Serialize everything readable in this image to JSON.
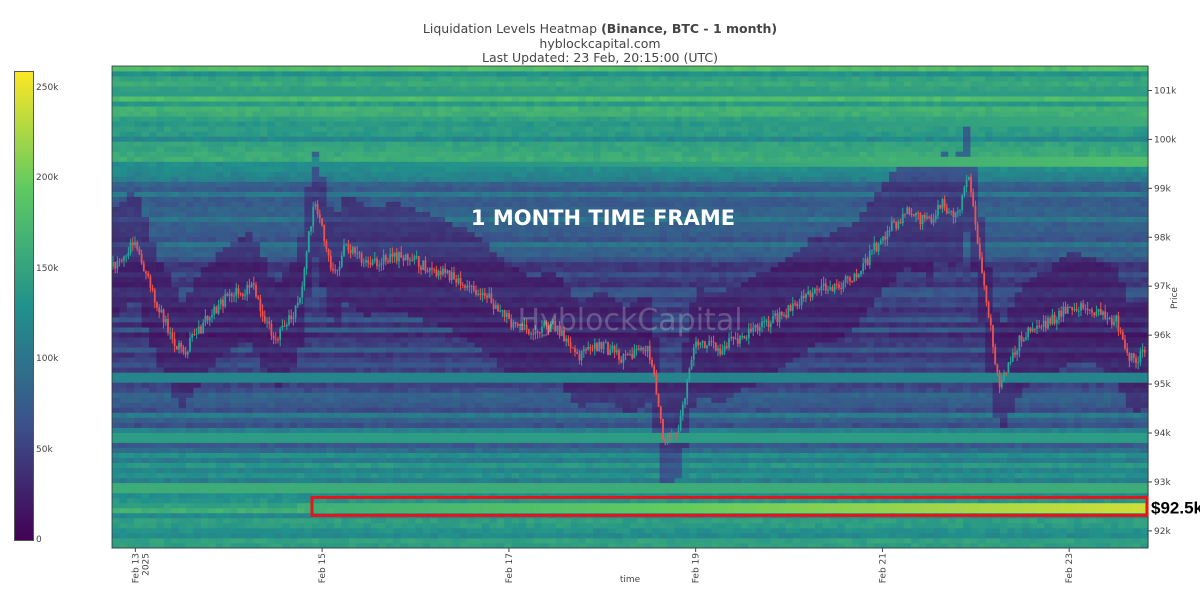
{
  "title": {
    "prefix": "Liquidation Levels Heatmap",
    "bold": "(Binance, BTC - 1 month)",
    "source": "hyblockcapital.com",
    "updated": "Last Updated: 23 Feb, 20:15:00 (UTC)"
  },
  "watermark": "HyblockCapital",
  "annotation": "1 MONTH TIME FRAME",
  "highlight_label": "$92.5k",
  "colors": {
    "colorscale": [
      "#440154",
      "#3b528b",
      "#21918c",
      "#5ec962",
      "#fde725"
    ],
    "candle_up": "#26a69a",
    "candle_down": "#ef5350",
    "highlight_box": "#e8141b"
  },
  "chart_data": {
    "type": "heatmap",
    "xlabel": "time",
    "ylabel": "Price",
    "x_ticks": [
      "Feb 13\n2025",
      "Feb 15",
      "Feb 17",
      "Feb 19",
      "Feb 21",
      "Feb 23"
    ],
    "y_ticks": [
      "92k",
      "93k",
      "94k",
      "95k",
      "96k",
      "97k",
      "98k",
      "99k",
      "100k",
      "101k"
    ],
    "ylim": [
      91650,
      101500
    ],
    "xlim": [
      "2025-02-12 18:00",
      "2025-02-23 20:15"
    ],
    "colorbar": {
      "ticks": [
        "0",
        "50k",
        "100k",
        "150k",
        "200k",
        "250k"
      ],
      "range": [
        0,
        260000
      ]
    },
    "highlighted_level": 92500,
    "price_path": {
      "times": [
        "2025-02-12 18:00",
        "2025-02-13 00:00",
        "2025-02-13 06:00",
        "2025-02-13 12:00",
        "2025-02-13 18:00",
        "2025-02-14 00:00",
        "2025-02-14 06:00",
        "2025-02-14 12:00",
        "2025-02-14 18:00",
        "2025-02-14 22:00",
        "2025-02-15 03:00",
        "2025-02-15 06:00",
        "2025-02-15 12:00",
        "2025-02-15 18:00",
        "2025-02-16 00:00",
        "2025-02-16 06:00",
        "2025-02-16 12:00",
        "2025-02-16 18:00",
        "2025-02-17 00:00",
        "2025-02-17 06:00",
        "2025-02-17 12:00",
        "2025-02-17 18:00",
        "2025-02-18 00:00",
        "2025-02-18 06:00",
        "2025-02-18 12:00",
        "2025-02-18 16:00",
        "2025-02-18 20:00",
        "2025-02-19 00:00",
        "2025-02-19 06:00",
        "2025-02-19 12:00",
        "2025-02-19 18:00",
        "2025-02-20 00:00",
        "2025-02-20 06:00",
        "2025-02-20 12:00",
        "2025-02-20 18:00",
        "2025-02-21 00:00",
        "2025-02-21 06:00",
        "2025-02-21 12:00",
        "2025-02-21 15:00",
        "2025-02-21 19:00",
        "2025-02-21 22:00",
        "2025-02-22 03:00",
        "2025-02-22 06:00",
        "2025-02-22 12:00",
        "2025-02-22 18:00",
        "2025-02-23 00:00",
        "2025-02-23 06:00",
        "2025-02-23 12:00",
        "2025-02-23 16:00",
        "2025-02-23 20:00"
      ],
      "prices": [
        97400,
        97900,
        96500,
        95600,
        96300,
        96800,
        97000,
        95900,
        96600,
        98800,
        97200,
        97800,
        97500,
        97600,
        97500,
        97300,
        97100,
        96800,
        96300,
        96100,
        96200,
        95600,
        95800,
        95500,
        95700,
        93800,
        94200,
        95900,
        95700,
        96000,
        96200,
        96500,
        96900,
        97000,
        97300,
        98000,
        98500,
        98300,
        98700,
        98400,
        99300,
        96500,
        95000,
        96000,
        96200,
        96600,
        96500,
        96300,
        95500,
        95600
      ]
    }
  }
}
